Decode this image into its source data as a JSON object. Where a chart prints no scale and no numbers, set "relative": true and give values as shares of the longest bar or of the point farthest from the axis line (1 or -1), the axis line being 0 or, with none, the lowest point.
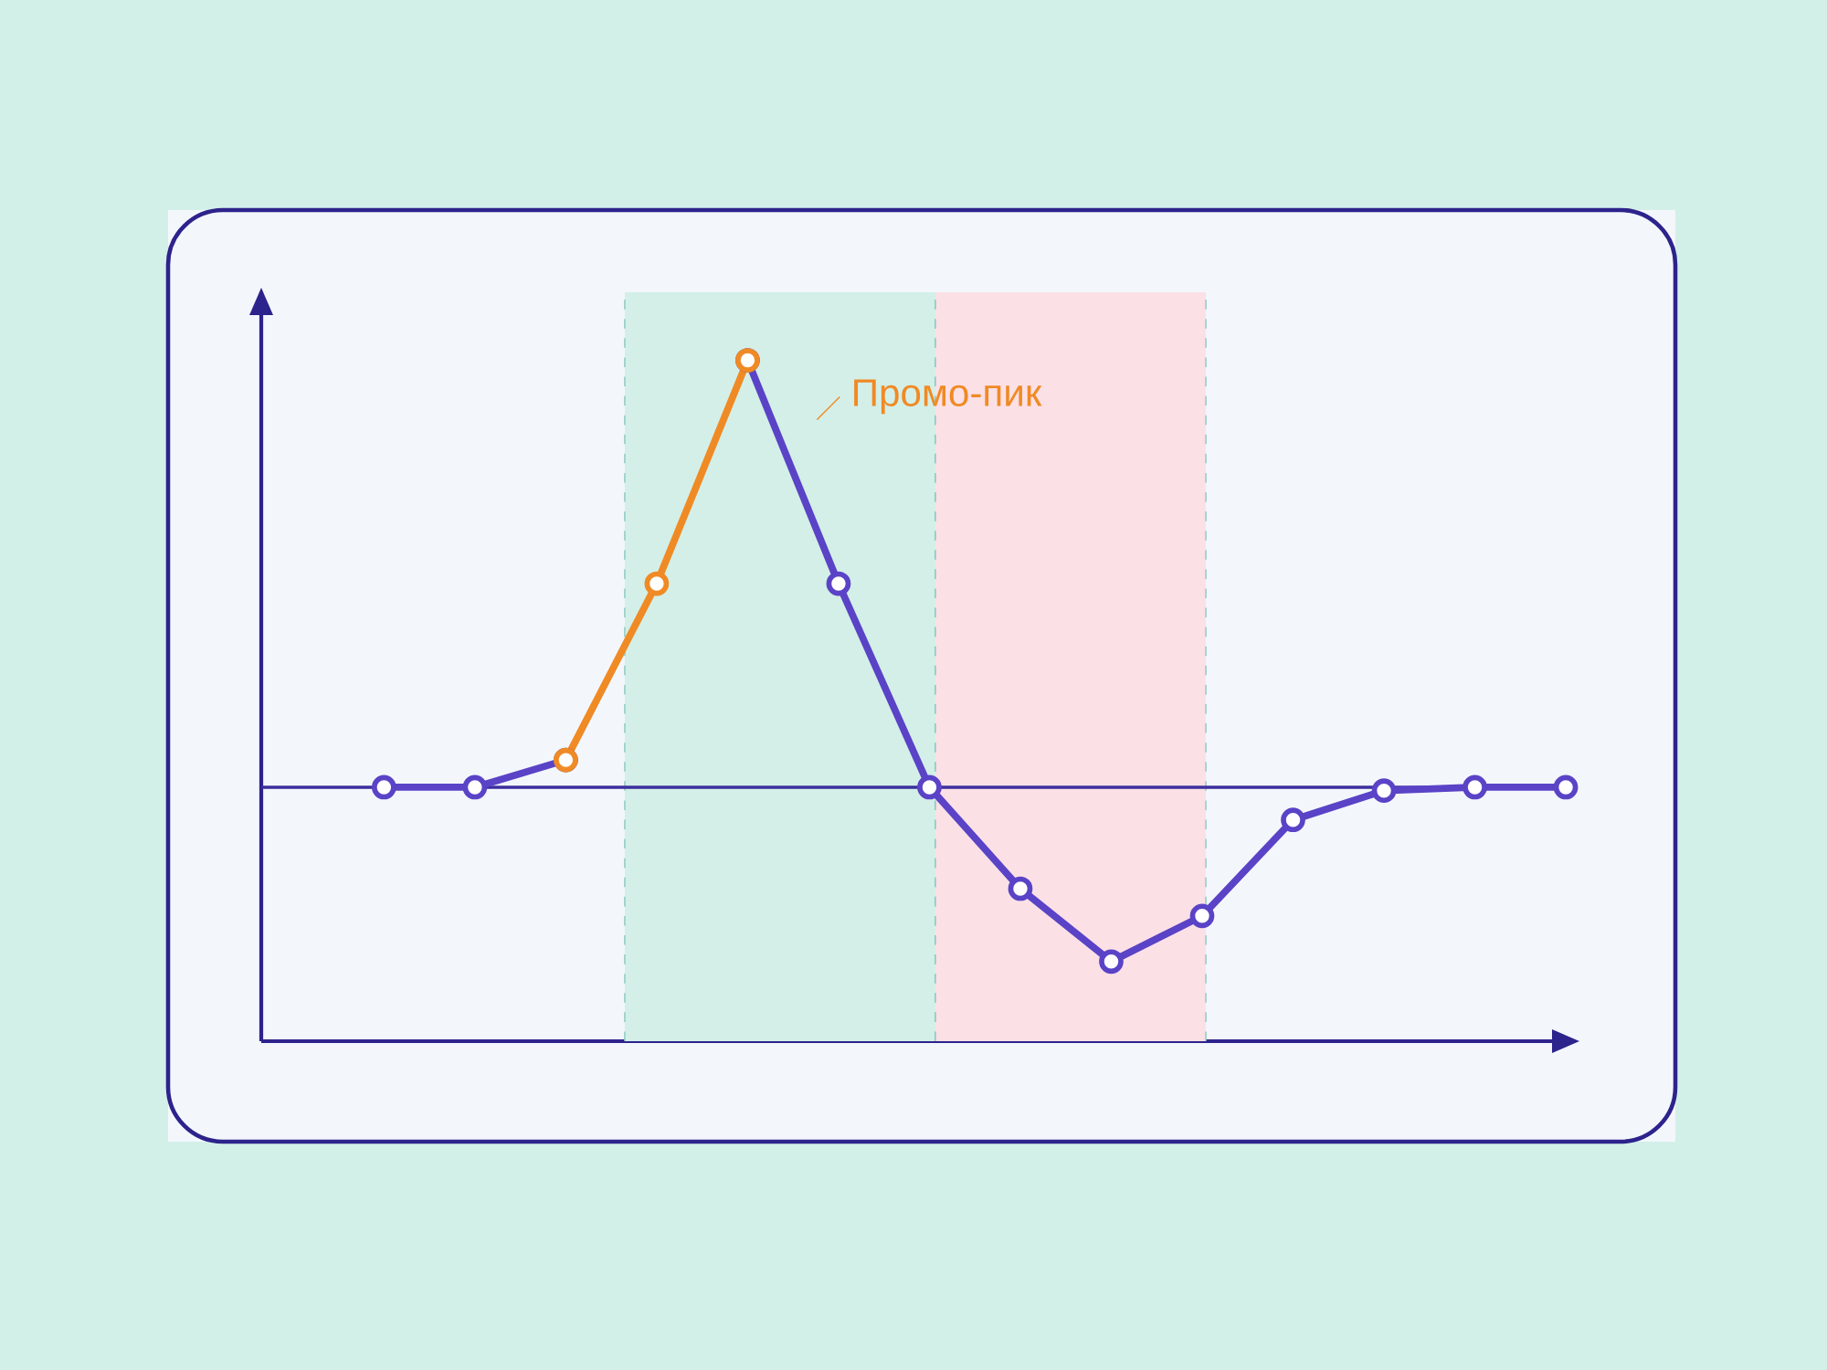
{
  "chart_data": {
    "type": "line",
    "relative": true,
    "categories": [
      null,
      null,
      null,
      null,
      null,
      null,
      null,
      null,
      null,
      null,
      null,
      null,
      null,
      null
    ],
    "series": [
      {
        "color": "#5a43c6",
        "values": [
          0.373,
          0.373,
          0.413,
          null,
          1,
          0.672,
          0.373,
          0.224,
          0.117,
          0.184,
          0.325,
          0.368,
          0.373,
          0.373
        ]
      },
      {
        "color": "#f08a24",
        "values": [
          null,
          null,
          0.413,
          0.672,
          1,
          null,
          null,
          null,
          null,
          null,
          null,
          null,
          null,
          null
        ]
      }
    ],
    "marker": "circle",
    "line_style": "solid",
    "ref_lines": [
      {
        "axis": "y",
        "value": 0.373,
        "color": "#3d2f9e"
      }
    ],
    "annotations": [
      "Промо-пик"
    ]
  }
}
